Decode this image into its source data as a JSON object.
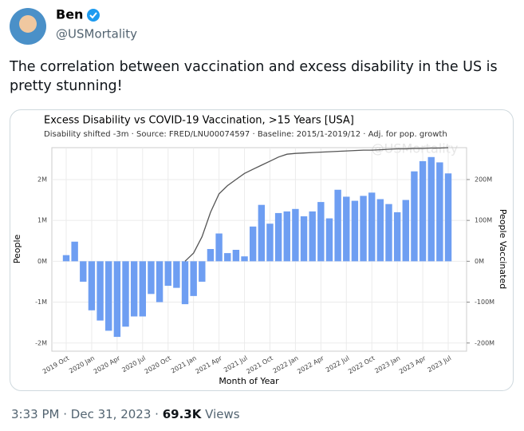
{
  "tweet": {
    "name": "Ben",
    "handle": "@USMortality",
    "text": "The correlation between vaccination and excess disability in the US is pretty stunning!",
    "time": "3:33 PM",
    "separator": "·",
    "date": "Dec 31, 2023",
    "views_count": "69.3K",
    "views_label": "Views"
  },
  "chart_data": {
    "type": "bar",
    "title": "Excess Disability vs COVID-19 Vaccination, >15 Years [USA]",
    "subtitle": "Disability shifted -3m · Source: FRED/LNU00074597 · Baseline: 2015/1-2019/12 · Adj. for pop. growth",
    "watermark": "@USMortality",
    "x_label": "Month of Year",
    "y_label": "People",
    "y2_label": "People Vaccinated",
    "categories": [
      "2019 Oct",
      null,
      null,
      "2020 Jan",
      null,
      null,
      "2020 Apr",
      null,
      null,
      "2020 Jul",
      null,
      null,
      "2020 Oct",
      null,
      null,
      "2021 Jan",
      null,
      null,
      "2021 Apr",
      null,
      null,
      "2021 Jul",
      null,
      null,
      "2021 Oct",
      null,
      null,
      "2022 Jan",
      null,
      null,
      "2022 Apr",
      null,
      null,
      "2022 Jul",
      null,
      null,
      "2022 Oct",
      null,
      null,
      "2023 Jan",
      null,
      null,
      "2023 Apr",
      null,
      null,
      "2023 Jul"
    ],
    "series": [
      {
        "name": "Excess Disability",
        "color": "#6e9ef2",
        "values": [
          150000,
          480000,
          -500000,
          -1200000,
          -1450000,
          -1700000,
          -1850000,
          -1600000,
          -1350000,
          -1350000,
          -800000,
          -1000000,
          -600000,
          -650000,
          -1050000,
          -850000,
          -500000,
          300000,
          680000,
          200000,
          280000,
          120000,
          850000,
          1380000,
          920000,
          1180000,
          1220000,
          1280000,
          1100000,
          1220000,
          1450000,
          1050000,
          1750000,
          1580000,
          1480000,
          1600000,
          1680000,
          1520000,
          1400000,
          1200000,
          1500000,
          2200000,
          2450000,
          2550000,
          2420000,
          2150000
        ]
      },
      {
        "name": "People Vaccinated",
        "color": "#555555",
        "axis": "y2",
        "values": [
          null,
          null,
          null,
          null,
          null,
          null,
          null,
          null,
          null,
          null,
          null,
          null,
          null,
          null,
          0,
          20000000,
          60000000,
          120000000,
          165000000,
          185000000,
          200000000,
          215000000,
          225000000,
          235000000,
          245000000,
          255000000,
          262000000,
          264000000,
          265000000,
          266000000,
          267000000,
          268000000,
          269000000,
          270000000,
          271000000,
          272000000,
          272000000,
          273000000,
          274000000,
          275000000,
          275000000,
          276000000,
          276000000,
          277000000,
          277000000,
          278000000
        ]
      }
    ],
    "ylim": [
      -2200000,
      2780000
    ],
    "yticks": [
      {
        "value": -2000000,
        "label": "-2M"
      },
      {
        "value": -1000000,
        "label": "-1M"
      },
      {
        "value": 0,
        "label": "0M"
      },
      {
        "value": 1000000,
        "label": "1M"
      },
      {
        "value": 2000000,
        "label": "2M"
      }
    ],
    "y2lim": [
      -220000000,
      278000000
    ],
    "y2ticks": [
      {
        "value": -200000000,
        "label": "-200M"
      },
      {
        "value": -100000000,
        "label": "-100M"
      },
      {
        "value": 0,
        "label": "0M"
      },
      {
        "value": 100000000,
        "label": "100M"
      },
      {
        "value": 200000000,
        "label": "200M"
      }
    ],
    "grid": true
  }
}
